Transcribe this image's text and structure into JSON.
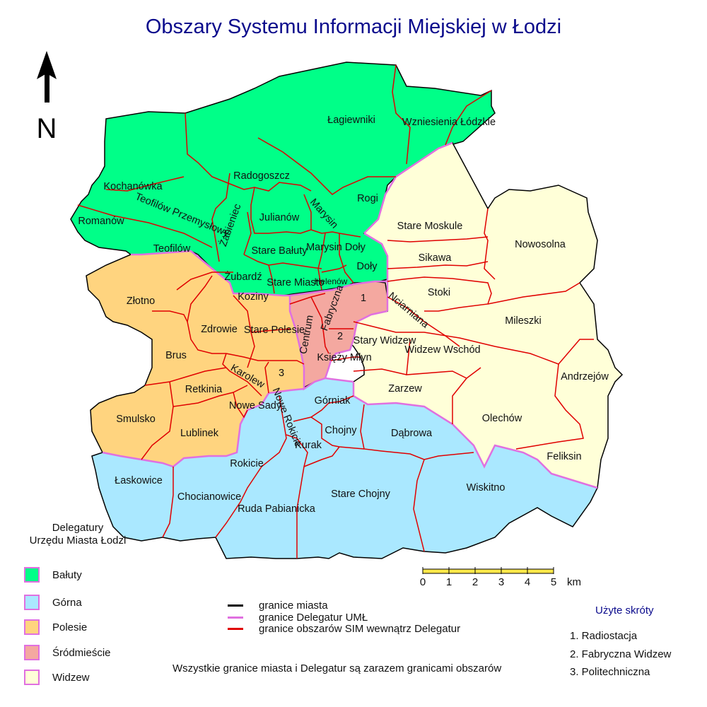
{
  "title": "Obszary Systemu Informacji Miejskiej w Łodzi",
  "north_label": "N",
  "colors": {
    "baluty": "#00ff88",
    "gorna": "#aae8ff",
    "polesie": "#ffd47f",
    "srodmiescie": "#f4a8a0",
    "widzew": "#ffffd8",
    "city_border": "#000000",
    "delegatura_border": "#e070e0",
    "sim_border": "#e00000",
    "title": "#0a0a8c"
  },
  "areas": [
    "Łagiewniki",
    "Wzniesienia Łódzkie",
    "Kochanówka",
    "Radogoszcz",
    "Rogi",
    "Teofilów Przemysłowy",
    "Julianów",
    "Marysin",
    "Romanów",
    "Żabieniec",
    "Stare Bałuty",
    "Marysin Doły",
    "Teofilów",
    "Doły",
    "Żubardź",
    "Stare Miasto",
    "Helenów",
    "Stare Moskule",
    "Nowosolna",
    "Sikawa",
    "Stoki",
    "Koziny",
    "Złotno",
    "Fabryczna",
    "Centrum",
    "1",
    "Nciarniana",
    "Stare Polesie",
    "Zdrowie",
    "Mileszki",
    "Stary Widzew",
    "2",
    "Brus",
    "Widzew Wschód",
    "Księży Młyn",
    "Karolew",
    "3",
    "Andrzejów",
    "Retkinia",
    "Zarzew",
    "Nowe Sady",
    "Górniak",
    "Nowe Rokicie",
    "Smulsko",
    "Olechów",
    "Lublinek",
    "Chojny",
    "Dąbrowa",
    "Kurak",
    "Feliksin",
    "Rokicie",
    "Łaskowice",
    "Wiskitno",
    "Stare Chojny",
    "Chocianowice",
    "Ruda Pabianicka"
  ],
  "legend": {
    "title_line1": "Delegatury",
    "title_line2": "Urzędu Miasta Łodzi",
    "items": [
      "Bałuty",
      "Górna",
      "Polesie",
      "Śródmieście",
      "Widzew"
    ]
  },
  "line_keys": [
    "granice miasta",
    "granice Delegatur UMŁ",
    "granice obszarów SIM wewnątrz Delegatur"
  ],
  "note": "Wszystkie granice miasta i Delegatur są zarazem granicami obszarów",
  "abbreviations": {
    "title": "Użyte skróty",
    "items": [
      "1. Radiostacja",
      "2. Fabryczna Widzew",
      "3. Politechniczna"
    ]
  },
  "scale": {
    "ticks": [
      "0",
      "1",
      "2",
      "3",
      "4",
      "5"
    ],
    "unit": "km"
  }
}
